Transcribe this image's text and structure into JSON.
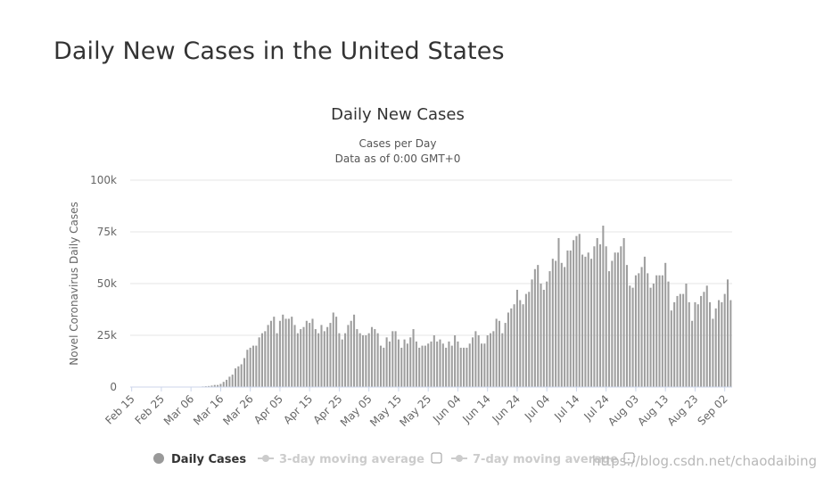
{
  "page": {
    "title": "Daily New Cases in the United States"
  },
  "watermark": "https://blog.csdn.net/chaodaibing",
  "chart_data": {
    "type": "bar",
    "title": "Daily New Cases",
    "subtitle_lines": [
      "Cases per Day",
      "Data as of 0:00 GMT+0"
    ],
    "ylabel": "Novel Coronavirus Daily Cases",
    "xlabel": "",
    "ylim": [
      0,
      100000
    ],
    "y_ticks": [
      0,
      25000,
      50000,
      75000,
      100000
    ],
    "y_tick_labels": [
      "0",
      "25k",
      "50k",
      "75k",
      "100k"
    ],
    "x_tick_labels": [
      "Feb 15",
      "Feb 25",
      "Mar 06",
      "Mar 16",
      "Mar 26",
      "Apr 05",
      "Apr 15",
      "Apr 25",
      "May 05",
      "May 15",
      "May 25",
      "Jun 04",
      "Jun 14",
      "Jun 24",
      "Jul 04",
      "Jul 14",
      "Jul 24",
      "Aug 03",
      "Aug 13",
      "Aug 23",
      "Sep 02"
    ],
    "x_tick_every": 10,
    "start_date": "2020-02-15",
    "grid": true,
    "bar_color": "#9e9e9e",
    "series": [
      {
        "name": "Daily Cases",
        "values": [
          0,
          0,
          0,
          0,
          0,
          0,
          0,
          0,
          0,
          0,
          0,
          0,
          0,
          0,
          0,
          0,
          0,
          0,
          0,
          0,
          0,
          0,
          100,
          200,
          300,
          400,
          500,
          700,
          1000,
          1000,
          1500,
          2500,
          3500,
          5000,
          6000,
          9000,
          10000,
          11000,
          14000,
          18000,
          19000,
          20000,
          20000,
          24000,
          26000,
          27000,
          30000,
          32000,
          34000,
          26000,
          32000,
          35000,
          33000,
          33000,
          34000,
          30000,
          26000,
          28000,
          29000,
          32000,
          31000,
          33000,
          28000,
          26000,
          30000,
          27000,
          29000,
          31000,
          36000,
          34000,
          26000,
          23000,
          26000,
          30000,
          32000,
          35000,
          28000,
          26000,
          25000,
          25000,
          26000,
          29000,
          28000,
          26000,
          20000,
          19000,
          24000,
          22000,
          27000,
          27000,
          23000,
          19000,
          23000,
          21000,
          24000,
          28000,
          22000,
          19000,
          20000,
          20000,
          21000,
          22000,
          25000,
          22000,
          23000,
          21000,
          19000,
          22000,
          20000,
          25000,
          22000,
          19000,
          19000,
          19000,
          21000,
          24000,
          27000,
          25000,
          21000,
          21000,
          25000,
          26000,
          27000,
          33000,
          32000,
          26000,
          31000,
          36000,
          38000,
          40000,
          47000,
          42000,
          40000,
          45000,
          46000,
          52000,
          57000,
          59000,
          50000,
          47000,
          51000,
          56000,
          62000,
          61000,
          72000,
          60000,
          58000,
          66000,
          66000,
          71000,
          73000,
          74000,
          64000,
          63000,
          65000,
          62000,
          68000,
          72000,
          69000,
          78000,
          68000,
          56000,
          61000,
          65000,
          65000,
          68000,
          72000,
          59000,
          49000,
          48000,
          54000,
          55000,
          58000,
          63000,
          55000,
          48000,
          50000,
          54000,
          54000,
          54000,
          60000,
          51000,
          37000,
          41000,
          44000,
          45000,
          45000,
          50000,
          41000,
          32000,
          41000,
          40000,
          44000,
          46000,
          49000,
          41000,
          33000,
          38000,
          42000,
          41000,
          45000,
          52000,
          42000
        ]
      }
    ],
    "legend": [
      {
        "label": "Daily Cases",
        "color": "#999999",
        "shape": "circle",
        "active": true
      },
      {
        "label": "3-day moving average",
        "color": "#cccccc",
        "shape": "line-dot",
        "active": false
      },
      {
        "label": "7-day moving average",
        "color": "#cccccc",
        "shape": "line-dot",
        "active": false
      }
    ]
  }
}
